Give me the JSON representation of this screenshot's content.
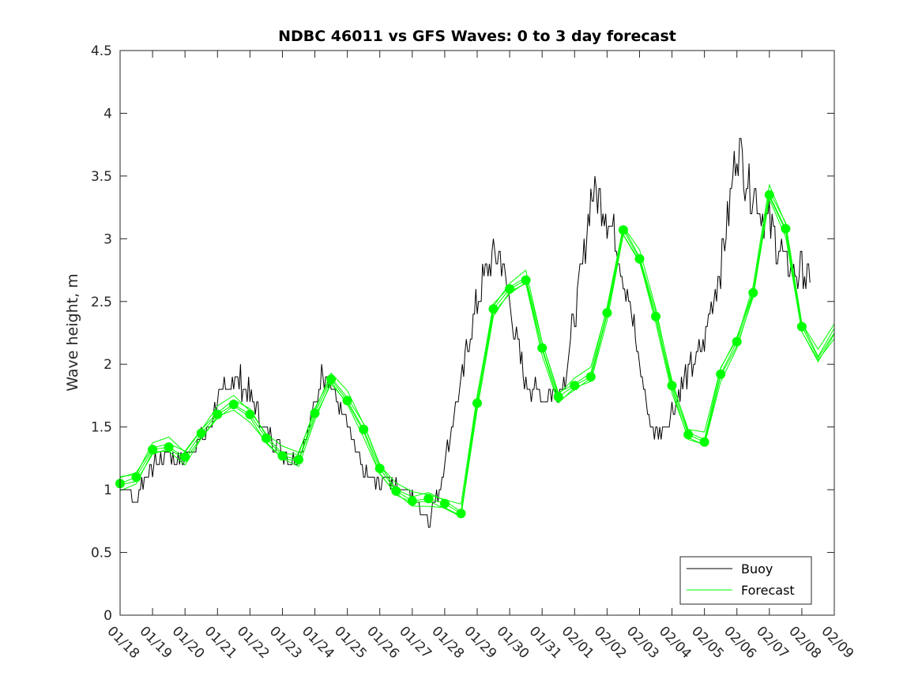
{
  "chart_data": {
    "type": "line",
    "title": "NDBC 46011 vs GFS Waves: 0 to 3 day forecast",
    "xlabel": "",
    "ylabel": "Wave height, m",
    "ylim": [
      0,
      4.5
    ],
    "yticks": [
      "0",
      "0.5",
      "1",
      "1.5",
      "2",
      "2.5",
      "3",
      "3.5",
      "4",
      "4.5"
    ],
    "xlim_days": [
      0,
      22
    ],
    "xticks": [
      "01/18",
      "01/19",
      "01/20",
      "01/21",
      "01/22",
      "01/23",
      "01/24",
      "01/25",
      "01/26",
      "01/27",
      "01/28",
      "01/29",
      "01/30",
      "01/31",
      "02/01",
      "02/02",
      "02/03",
      "02/04",
      "02/05",
      "02/06",
      "02/07",
      "02/08",
      "02/09"
    ],
    "grid": false,
    "legend": {
      "position": "bottom-right",
      "entries": [
        "Buoy",
        "Forecast"
      ]
    },
    "colors": {
      "buoy": "#000000",
      "forecast": "#00ff00",
      "axes": "#262626"
    },
    "series": [
      {
        "name": "Buoy",
        "x": [
          0,
          0.25,
          0.5,
          0.75,
          1,
          1.25,
          1.5,
          1.75,
          2,
          2.25,
          2.5,
          2.75,
          3,
          3.25,
          3.5,
          3.75,
          4,
          4.25,
          4.5,
          4.75,
          5,
          5.25,
          5.5,
          5.75,
          6,
          6.25,
          6.5,
          6.75,
          7,
          7.25,
          7.5,
          7.75,
          8,
          8.25,
          8.5,
          8.75,
          9,
          9.25,
          9.5,
          9.75,
          10,
          10.25,
          10.5,
          10.75,
          11,
          11.25,
          11.5,
          11.75,
          12,
          12.25,
          12.5,
          12.75,
          13,
          13.25,
          13.5,
          13.75,
          14,
          14.25,
          14.5,
          14.75,
          15,
          15.25,
          15.5,
          15.75,
          16,
          16.25,
          16.5,
          16.75,
          17,
          17.25,
          17.5,
          17.75,
          18,
          18.25,
          18.5,
          18.75,
          19,
          19.25,
          19.5,
          19.75,
          20,
          20.25,
          20.5,
          20.75,
          21,
          21.25
        ],
        "values": [
          1.0,
          1.0,
          0.9,
          1.1,
          1.2,
          1.25,
          1.3,
          1.25,
          1.25,
          1.35,
          1.4,
          1.5,
          1.7,
          1.8,
          1.9,
          1.85,
          1.75,
          1.6,
          1.45,
          1.4,
          1.3,
          1.25,
          1.3,
          1.45,
          1.65,
          1.95,
          1.85,
          1.65,
          1.5,
          1.3,
          1.15,
          1.05,
          1.05,
          1.1,
          1.05,
          1.0,
          0.95,
          0.85,
          0.75,
          0.95,
          1.2,
          1.55,
          1.85,
          2.2,
          2.5,
          2.7,
          2.9,
          2.85,
          2.5,
          2.1,
          1.85,
          1.8,
          1.75,
          1.75,
          1.8,
          1.95,
          2.4,
          2.8,
          3.4,
          3.3,
          3.2,
          3.0,
          2.75,
          2.4,
          2.0,
          1.6,
          1.45,
          1.5,
          1.65,
          1.8,
          1.95,
          2.05,
          2.2,
          2.5,
          2.8,
          3.2,
          3.8,
          3.5,
          3.4,
          3.2,
          3.1,
          2.95,
          2.8,
          2.7,
          2.75,
          2.65
        ]
      },
      {
        "name": "Forecast",
        "x": [
          0,
          0.5,
          1,
          1.5,
          2,
          2.5,
          3,
          3.5,
          4,
          4.5,
          5,
          5.5,
          6,
          6.5,
          7,
          7.5,
          8,
          8.5,
          9,
          9.5,
          10,
          10.5,
          11,
          11.5,
          12,
          12.5,
          13,
          13.5,
          14,
          14.5,
          15,
          15.5,
          16,
          16.5,
          17,
          17.5,
          18,
          18.5,
          19,
          19.5,
          20,
          20.5,
          21,
          21.5,
          22
        ],
        "values": [
          1.05,
          1.1,
          1.32,
          1.34,
          1.26,
          1.45,
          1.6,
          1.68,
          1.6,
          1.41,
          1.27,
          1.24,
          1.61,
          1.88,
          1.71,
          1.48,
          1.17,
          0.99,
          0.91,
          0.93,
          0.89,
          0.81,
          1.69,
          2.44,
          2.6,
          2.67,
          2.13,
          1.74,
          1.83,
          1.9,
          2.41,
          3.07,
          2.84,
          2.38,
          1.83,
          1.44,
          1.38,
          1.92,
          2.18,
          2.57,
          3.35,
          3.08,
          2.3,
          2.05,
          2.25
        ]
      }
    ],
    "forecast_markers": {
      "x": [
        0,
        0.5,
        1,
        1.5,
        2,
        2.5,
        3,
        3.5,
        4,
        4.5,
        5,
        5.5,
        6,
        6.5,
        7,
        7.5,
        8,
        8.5,
        9,
        9.5,
        10,
        10.5,
        11,
        11.5,
        12,
        12.5,
        13,
        13.5,
        14,
        14.5,
        15,
        15.5,
        16,
        16.5,
        17,
        17.5,
        18,
        18.5,
        19,
        19.5,
        20,
        20.5,
        21
      ],
      "values": [
        1.05,
        1.1,
        1.32,
        1.34,
        1.26,
        1.45,
        1.6,
        1.68,
        1.6,
        1.41,
        1.27,
        1.24,
        1.61,
        1.88,
        1.71,
        1.48,
        1.17,
        0.99,
        0.91,
        0.93,
        0.89,
        0.81,
        1.69,
        2.44,
        2.6,
        2.67,
        2.13,
        1.74,
        1.83,
        1.9,
        2.41,
        3.07,
        2.84,
        2.38,
        1.83,
        1.44,
        1.38,
        1.92,
        2.18,
        2.57,
        3.35,
        3.08,
        2.3
      ]
    }
  }
}
